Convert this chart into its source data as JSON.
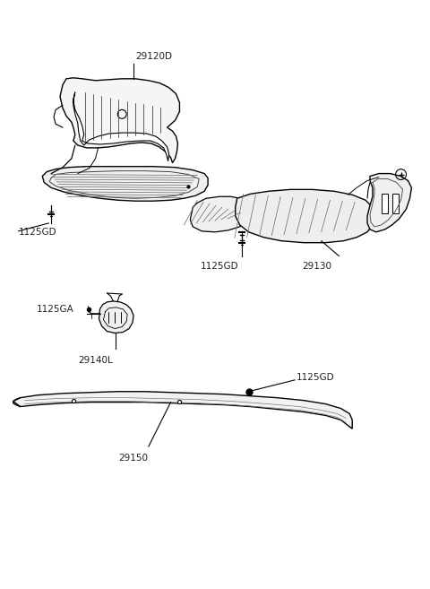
{
  "bg_color": "#ffffff",
  "line_color": "#000000",
  "label_color": "#222222",
  "parts": [
    {
      "id": "29120D",
      "label": "29120D"
    },
    {
      "id": "29130",
      "label": "29130"
    },
    {
      "id": "29140L",
      "label": "29140L"
    },
    {
      "id": "29150",
      "label": "29150"
    },
    {
      "id": "1125GD_1",
      "label": "1125GD"
    },
    {
      "id": "1125GD_2",
      "label": "1125GD"
    },
    {
      "id": "1125GD_3",
      "label": "1125GD"
    },
    {
      "id": "1125GA",
      "label": "1125GA"
    }
  ],
  "fig_width": 4.8,
  "fig_height": 6.57,
  "dpi": 100
}
